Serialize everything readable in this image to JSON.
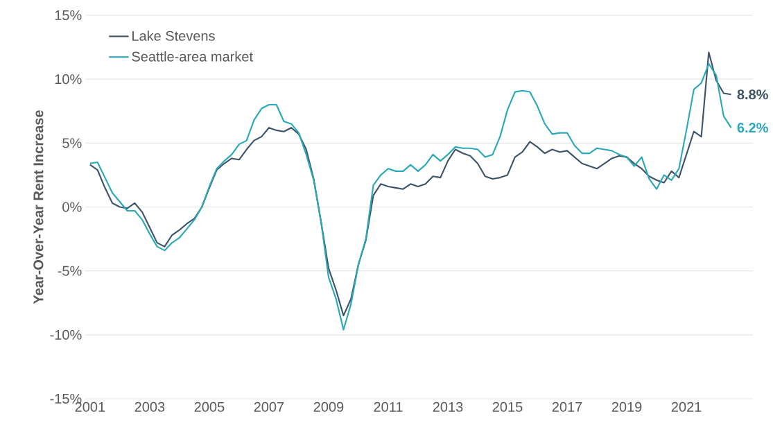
{
  "chart_data": {
    "type": "line",
    "ylabel": "Year-Over-Year Rent Increase",
    "x": [
      2001,
      2001.25,
      2001.5,
      2001.75,
      2002,
      2002.25,
      2002.5,
      2002.75,
      2003,
      2003.25,
      2003.5,
      2003.75,
      2004,
      2004.25,
      2004.5,
      2004.75,
      2005,
      2005.25,
      2005.5,
      2005.75,
      2006,
      2006.25,
      2006.5,
      2006.75,
      2007,
      2007.25,
      2007.5,
      2007.75,
      2008,
      2008.25,
      2008.5,
      2008.75,
      2009,
      2009.25,
      2009.5,
      2009.75,
      2010,
      2010.25,
      2010.5,
      2010.75,
      2011,
      2011.25,
      2011.5,
      2011.75,
      2012,
      2012.25,
      2012.5,
      2012.75,
      2013,
      2013.25,
      2013.5,
      2013.75,
      2014,
      2014.25,
      2014.5,
      2014.75,
      2015,
      2015.25,
      2015.5,
      2015.75,
      2016,
      2016.25,
      2016.5,
      2016.75,
      2017,
      2017.25,
      2017.5,
      2017.75,
      2018,
      2018.25,
      2018.5,
      2018.75,
      2019,
      2019.25,
      2019.5,
      2019.75,
      2020,
      2020.25,
      2020.5,
      2020.75,
      2021,
      2021.25,
      2021.5,
      2021.75,
      2022,
      2022.25,
      2022.5
    ],
    "series": [
      {
        "name": "Lake Stevens",
        "color": "#3d5468",
        "values": [
          3.3,
          2.9,
          1.5,
          0.3,
          0.0,
          -0.1,
          0.3,
          -0.4,
          -1.6,
          -2.8,
          -3.1,
          -2.2,
          -1.8,
          -1.3,
          -0.9,
          0.0,
          1.5,
          2.9,
          3.4,
          3.8,
          3.7,
          4.5,
          5.2,
          5.5,
          6.2,
          6.0,
          5.9,
          6.2,
          5.7,
          4.5,
          2.2,
          -1.2,
          -4.8,
          -6.5,
          -8.5,
          -7.2,
          -4.5,
          -2.6,
          0.9,
          1.8,
          1.6,
          1.5,
          1.4,
          1.8,
          1.6,
          1.8,
          2.4,
          2.3,
          3.6,
          4.5,
          4.2,
          4.0,
          3.4,
          2.4,
          2.2,
          2.3,
          2.5,
          3.9,
          4.3,
          5.1,
          4.7,
          4.2,
          4.5,
          4.3,
          4.4,
          3.9,
          3.4,
          3.2,
          3.0,
          3.4,
          3.8,
          4.0,
          3.9,
          3.4,
          3.0,
          2.4,
          2.1,
          1.9,
          2.8,
          2.3,
          4.1,
          5.9,
          5.5,
          12.1,
          9.9,
          8.9,
          8.8
        ]
      },
      {
        "name": "Seattle-area market",
        "color": "#2aa8b8",
        "values": [
          3.4,
          3.5,
          2.3,
          1.1,
          0.4,
          -0.3,
          -0.3,
          -1.0,
          -2.1,
          -3.1,
          -3.4,
          -2.8,
          -2.4,
          -1.7,
          -1.0,
          0.0,
          1.6,
          3.0,
          3.6,
          4.1,
          4.9,
          5.2,
          6.8,
          7.7,
          8.0,
          8.0,
          6.7,
          6.5,
          5.8,
          4.1,
          2.1,
          -1.2,
          -5.5,
          -7.2,
          -9.6,
          -7.6,
          -4.5,
          -2.5,
          1.7,
          2.5,
          3.0,
          2.8,
          2.8,
          3.3,
          2.8,
          3.3,
          4.1,
          3.6,
          4.1,
          4.7,
          4.6,
          4.6,
          4.5,
          3.9,
          4.1,
          5.5,
          7.6,
          9.0,
          9.1,
          9.0,
          7.9,
          6.5,
          5.7,
          5.8,
          5.8,
          4.8,
          4.2,
          4.2,
          4.6,
          4.5,
          4.4,
          4.1,
          3.9,
          3.2,
          3.9,
          2.2,
          1.4,
          2.5,
          2.1,
          3.0,
          6.0,
          9.2,
          9.7,
          11.2,
          10.3,
          7.1,
          6.2
        ]
      }
    ],
    "annotations": [
      {
        "text": "8.8%",
        "x": 2022.5,
        "y": 8.8
      },
      {
        "text": "6.2%",
        "x": 2022.5,
        "y": 6.2
      }
    ],
    "xlim": [
      2000.84,
      2023.23
    ],
    "xticks": [
      2001,
      2003,
      2005,
      2007,
      2009,
      2011,
      2013,
      2015,
      2017,
      2019,
      2021
    ],
    "ylim": [
      -15,
      15
    ],
    "yticks": [
      {
        "value": -15,
        "label": "-15%"
      },
      {
        "value": -10,
        "label": "-10%"
      },
      {
        "value": -5,
        "label": "-5%"
      },
      {
        "value": 0,
        "label": "0%"
      },
      {
        "value": 5,
        "label": "5%"
      },
      {
        "value": 10,
        "label": "10%"
      },
      {
        "value": 15,
        "label": "15%"
      }
    ],
    "grid": "y",
    "legend": "top left",
    "line_style": "solid"
  }
}
